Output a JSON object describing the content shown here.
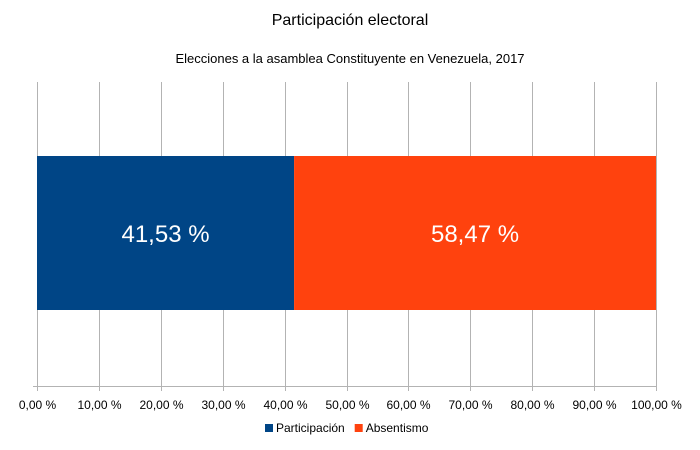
{
  "chart_data": {
    "type": "bar",
    "orientation": "horizontal",
    "stacked": true,
    "title": "Participación electoral",
    "subtitle": "Elecciones a la asamblea Constituyente en Venezuela, 2017",
    "xlim": [
      0,
      100
    ],
    "ticks": [
      "0,00 %",
      "10,00 %",
      "20,00 %",
      "30,00 %",
      "40,00 %",
      "50,00 %",
      "60,00 %",
      "70,00 %",
      "80,00 %",
      "90,00 %",
      "100,00 %"
    ],
    "grid": true,
    "legend": "bottom",
    "series": [
      {
        "name": "Participación",
        "values": [
          41.53
        ],
        "label": "41,53 %",
        "color": "#004586"
      },
      {
        "name": "Absentismo",
        "values": [
          58.47
        ],
        "label": "58,47 %",
        "color": "#ff420e"
      }
    ]
  }
}
